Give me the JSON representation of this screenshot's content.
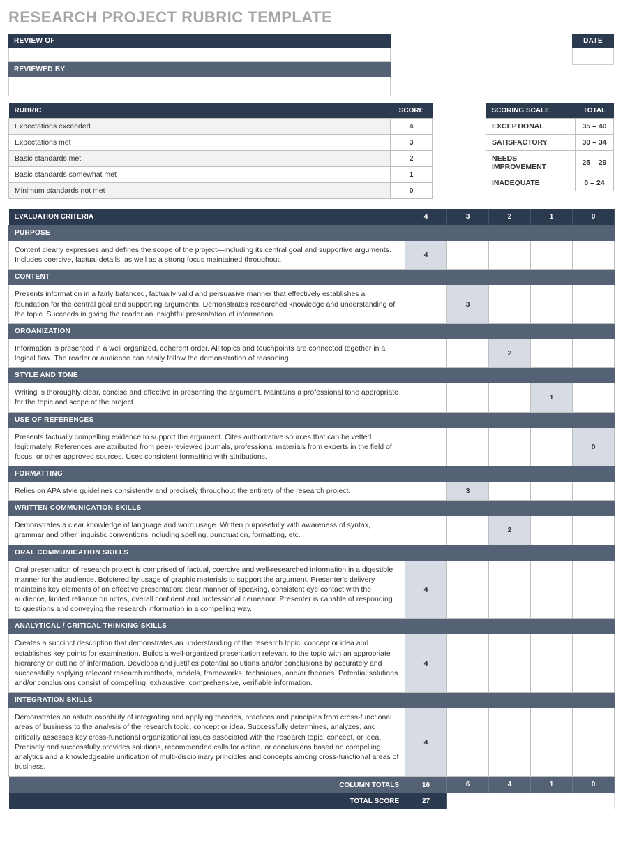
{
  "title": "RESEARCH PROJECT RUBRIC TEMPLATE",
  "colors": {
    "header_dark": "#2b3a4f",
    "header_med": "#556275",
    "title_grey": "#a6a6a6",
    "cell_selected": "#d6dbe4",
    "alt_row": "#f2f2f2",
    "border": "#bfbfbf"
  },
  "header": {
    "review_of_label": "REVIEW OF",
    "reviewed_by_label": "REVIEWED BY",
    "date_label": "DATE"
  },
  "rubric": {
    "col_rubric": "RUBRIC",
    "col_score": "SCORE",
    "rows": [
      {
        "label": "Expectations exceeded",
        "score": "4"
      },
      {
        "label": "Expectations met",
        "score": "3"
      },
      {
        "label": "Basic standards met",
        "score": "2"
      },
      {
        "label": "Basic standards somewhat met",
        "score": "1"
      },
      {
        "label": "Minimum standards not met",
        "score": "0"
      }
    ]
  },
  "scale": {
    "col_scale": "SCORING SCALE",
    "col_total": "TOTAL",
    "rows": [
      {
        "label": "EXCEPTIONAL",
        "range": "35 – 40"
      },
      {
        "label": "SATISFACTORY",
        "range": "30 – 34"
      },
      {
        "label": "NEEDS IMPROVEMENT",
        "range": "25 – 29"
      },
      {
        "label": "INADEQUATE",
        "range": "0 – 24"
      }
    ]
  },
  "evaluation": {
    "col_criteria": "EVALUATION CRITERIA",
    "score_cols": [
      "4",
      "3",
      "2",
      "1",
      "0"
    ],
    "criteria": [
      {
        "name": "PURPOSE",
        "desc": "Content clearly expresses and defines the scope of the project—including its central goal and supportive arguments. Includes coercive, factual details, as well as a strong focus maintained throughout.",
        "selected": 0,
        "value": "4"
      },
      {
        "name": "CONTENT",
        "desc": "Presents information in a fairly balanced, factually valid and persuasive manner that effectively establishes a foundation for the central goal and supporting arguments. Demonstrates researched knowledge and understanding of the topic. Succeeds in giving the reader an insightful presentation of information.",
        "selected": 1,
        "value": "3"
      },
      {
        "name": "ORGANIZATION",
        "desc": "Information is presented in a well organized, coherent order. All topics and touchpoints are connected together in a logical flow. The reader or audience can easily follow the demonstration of reasoning.",
        "selected": 2,
        "value": "2"
      },
      {
        "name": "STYLE AND TONE",
        "desc": "Writing is thoroughly clear, concise and effective in presenting the argument. Maintains a professional tone appropriate for the topic and scope of the project.",
        "selected": 3,
        "value": "1"
      },
      {
        "name": "USE OF REFERENCES",
        "desc": "Presents factually compelling evidence to support the argument. Cites authoritative sources that can be vetted legitimately. References are attributed from peer-reviewed journals, professional materials from experts in the field of focus, or other approved sources. Uses consistent formatting with attributions.",
        "selected": 4,
        "value": "0"
      },
      {
        "name": "FORMATTING",
        "desc": "Relies on APA style guidelines consistently and precisely throughout the entirety of the research project.",
        "selected": 1,
        "value": "3"
      },
      {
        "name": "WRITTEN COMMUNICATION SKILLS",
        "desc": "Demonstrates a clear knowledge of language and word usage. Written purposefully with awareness of syntax, grammar and other linguistic conventions including spelling, punctuation, formatting, etc.",
        "selected": 2,
        "value": "2"
      },
      {
        "name": "ORAL COMMUNICATION SKILLS",
        "desc": "Oral presentation of research project is comprised of factual, coercive and well-researched information in a digestible manner for the audience. Bolstered by usage of graphic materials to support the argument. Presenter's delivery maintains key elements of an effective presentation: clear manner of speaking, consistent eye contact with the audience, limited reliance on notes, overall confident and professional demeanor. Presenter is capable of responding to questions and conveying the research information in a compelling way.",
        "selected": 0,
        "value": "4"
      },
      {
        "name": "ANALYTICAL / CRITICAL THINKING SKILLS",
        "desc": "Creates a succinct description that demonstrates an understanding of the research topic, concept or idea and establishes key points for examination. Builds a well-organized presentation relevant to the topic with an appropriate hierarchy or outline of information. Develops and justifies potential solutions and/or conclusions by accurately and successfully applying relevant research methods, models, frameworks, techniques, and/or theories. Potential solutions and/or conclusions consist of compelling, exhaustive, comprehensive, verifiable information.",
        "selected": 0,
        "value": "4"
      },
      {
        "name": "INTEGRATION SKILLS",
        "desc": "Demonstrates an astute capability of integrating and applying theories, practices and principles from cross-functional areas of business to the analysis of the research topic, concept or idea. Successfully determines, analyzes, and critically assesses key cross-functional organizational issues associated with the research topic, concept, or idea. Precisely and successfully provides solutions, recommended calls for action, or conclusions based on compelling  analytics and a knowledgeable unification of multi-disciplinary principles and concepts among cross-functional areas of business.",
        "selected": 0,
        "value": "4"
      }
    ],
    "column_totals_label": "COLUMN TOTALS",
    "column_totals": [
      "16",
      "6",
      "4",
      "1",
      "0"
    ],
    "total_score_label": "TOTAL SCORE",
    "total_score": "27"
  }
}
